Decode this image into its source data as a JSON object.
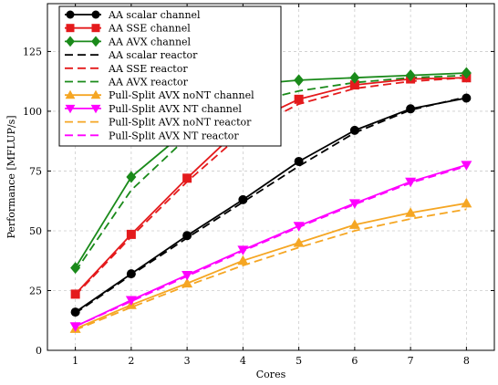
{
  "chart_data": {
    "type": "line",
    "title": "",
    "xlabel": "Cores",
    "ylabel": "Performance [MFLUP/s]",
    "x": [
      1,
      2,
      3,
      4,
      5,
      6,
      7,
      8
    ],
    "xlim": [
      0.5,
      8.5
    ],
    "ylim": [
      0,
      145
    ],
    "xticks": [
      1,
      2,
      3,
      4,
      5,
      6,
      7,
      8
    ],
    "yticks": [
      0,
      25,
      50,
      75,
      100,
      125
    ],
    "grid": true,
    "legend_position": "top-left",
    "series": [
      {
        "name": "AA scalar channel",
        "color": "#000000",
        "style": "solid",
        "marker": "circle",
        "values": [
          16,
          32,
          48,
          63,
          79,
          92,
          101,
          105.5
        ]
      },
      {
        "name": "AA SSE channel",
        "color": "#e41a1c",
        "style": "solid",
        "marker": "square",
        "values": [
          23.5,
          48.5,
          72,
          94,
          105,
          111,
          113.5,
          114
        ]
      },
      {
        "name": "AA AVX channel",
        "color": "#1a8a1a",
        "style": "solid",
        "marker": "diamond",
        "values": [
          34.5,
          72.5,
          92,
          111,
          113,
          114,
          115,
          116
        ]
      },
      {
        "name": "AA scalar reactor",
        "color": "#000000",
        "style": "dashed",
        "marker": "none",
        "values": [
          15.5,
          31.5,
          47,
          62,
          77,
          91,
          100.5,
          106
        ]
      },
      {
        "name": "AA SSE reactor",
        "color": "#e41a1c",
        "style": "dashed",
        "marker": "none",
        "values": [
          23,
          47.5,
          70.5,
          91,
          103,
          109.5,
          112.5,
          114
        ]
      },
      {
        "name": "AA AVX reactor",
        "color": "#1a8a1a",
        "style": "dashed",
        "marker": "none",
        "values": [
          33,
          67,
          89,
          103,
          108.5,
          112,
          114,
          115
        ]
      },
      {
        "name": "Pull-Split AVX noNT channel",
        "color": "#f5a623",
        "style": "solid",
        "marker": "triangle-up",
        "values": [
          9,
          19,
          28,
          37.5,
          45,
          52.5,
          57.5,
          61.5
        ]
      },
      {
        "name": "Pull-Split AVX NT channel",
        "color": "#ff00ff",
        "style": "solid",
        "marker": "triangle-down",
        "values": [
          10,
          21,
          31.5,
          42,
          52,
          61.5,
          70.5,
          77.5
        ]
      },
      {
        "name": "Pull-Split AVX noNT reactor",
        "color": "#f5a623",
        "style": "dashed",
        "marker": "none",
        "values": [
          8.5,
          18,
          27,
          35.5,
          43,
          50,
          55,
          59
        ]
      },
      {
        "name": "Pull-Split AVX NT reactor",
        "color": "#ff00ff",
        "style": "dashed",
        "marker": "none",
        "values": [
          10,
          20.5,
          31,
          41.5,
          51.5,
          61,
          70,
          77
        ]
      }
    ]
  }
}
